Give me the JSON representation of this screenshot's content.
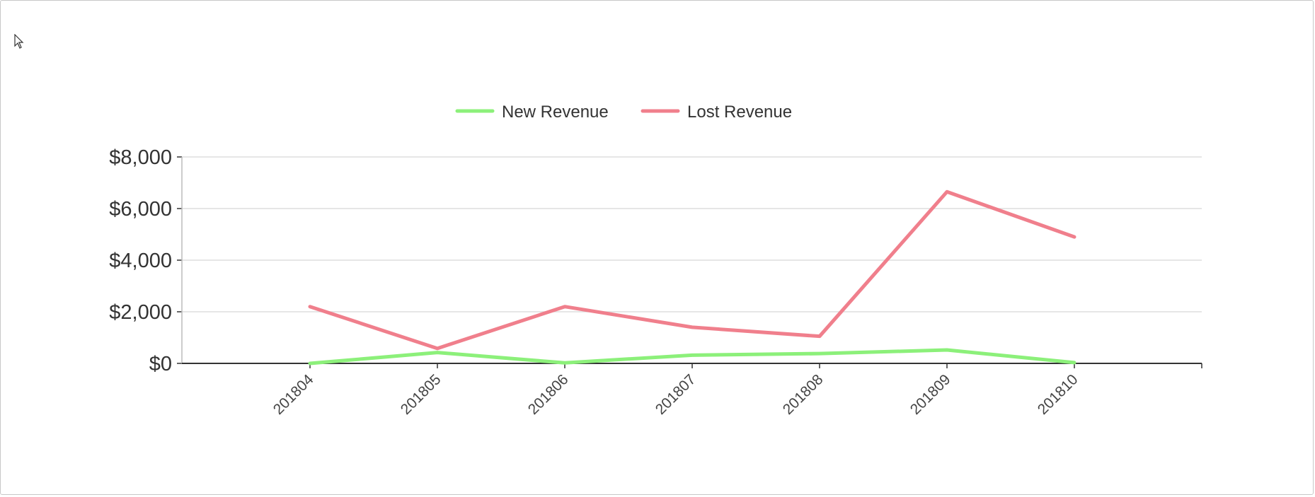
{
  "cursor_icon": "arrow-cursor-icon",
  "colors": {
    "new_revenue": "#8cf07a",
    "lost_revenue": "#f07f8c",
    "grid": "#dddddd",
    "axis": "#333333"
  },
  "chart_data": {
    "type": "line",
    "categories": [
      "201804",
      "201805",
      "201806",
      "201807",
      "201808",
      "201809",
      "201810"
    ],
    "series": [
      {
        "name": "New Revenue",
        "values": [
          0,
          420,
          20,
          320,
          380,
          520,
          30
        ]
      },
      {
        "name": "Lost Revenue",
        "values": [
          2200,
          580,
          2200,
          1400,
          1050,
          6650,
          4900
        ]
      }
    ],
    "y_ticks": [
      "$0",
      "$2,000",
      "$4,000",
      "$6,000",
      "$8,000"
    ],
    "ylim": [
      0,
      8000
    ],
    "grid": true,
    "legend": "top-center"
  }
}
